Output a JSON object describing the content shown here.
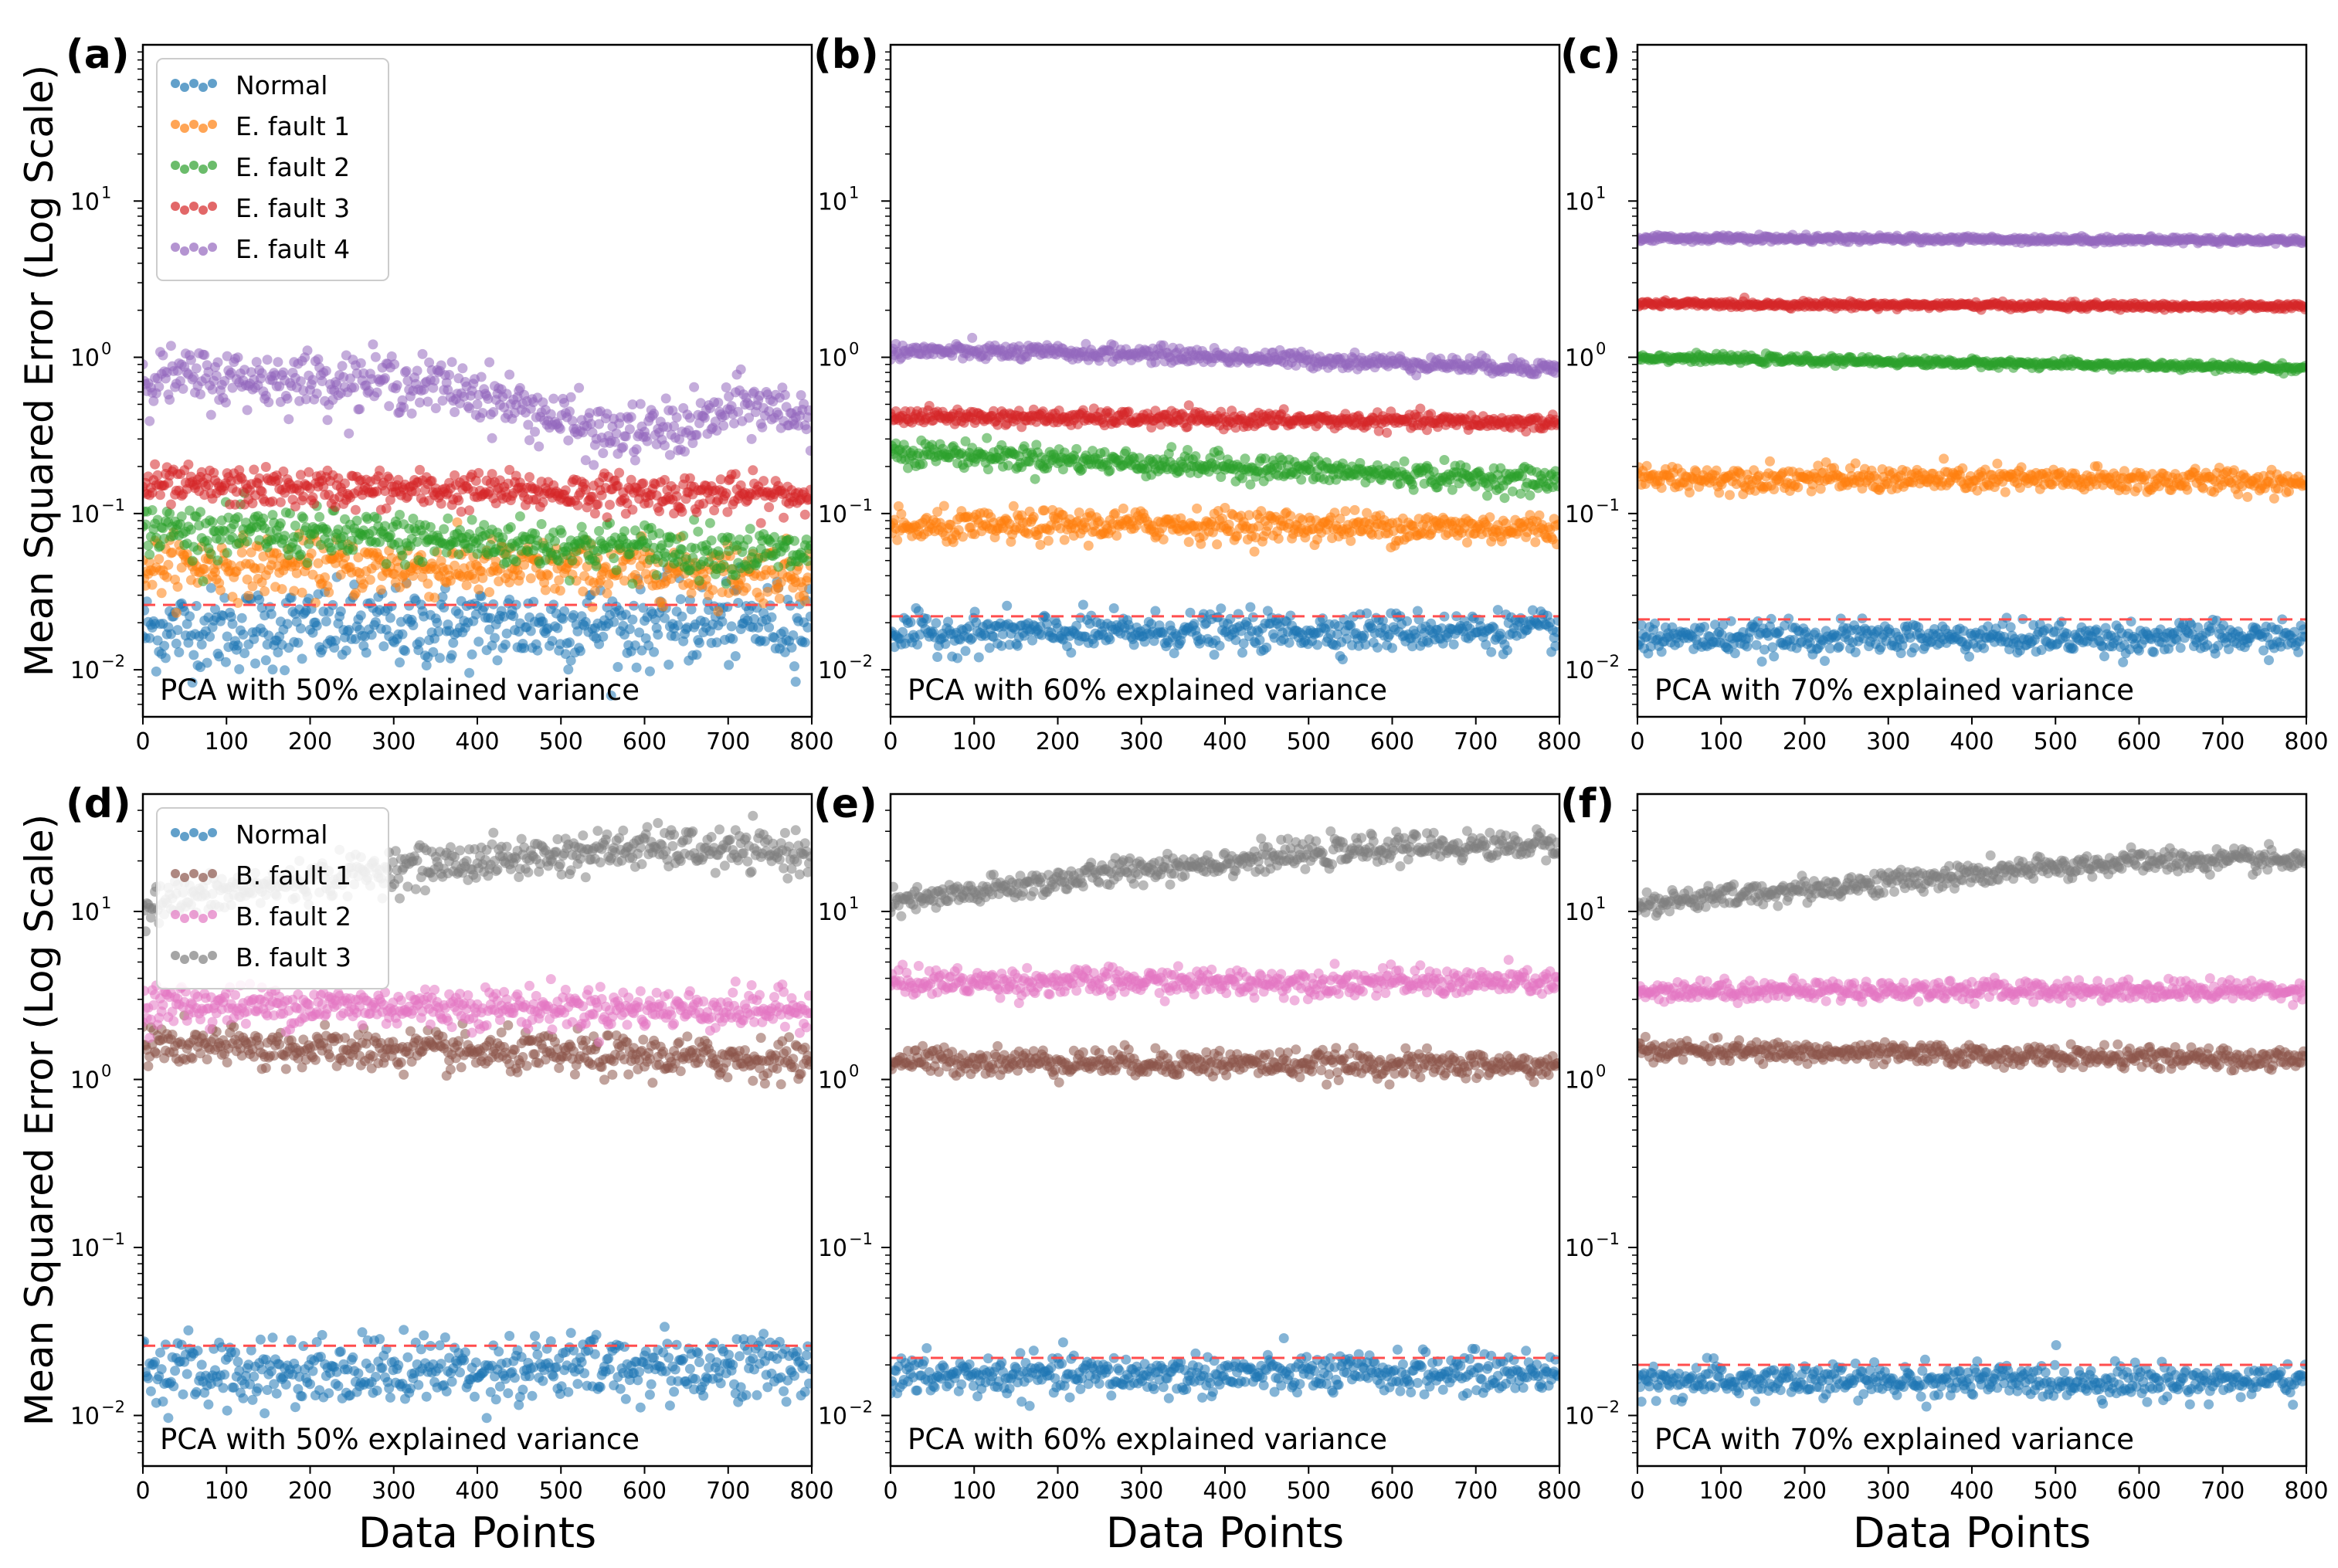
{
  "figure": {
    "ylabel": "Mean Squared Error (Log Scale)",
    "xlabel": "Data Points"
  },
  "chart_data": [
    {
      "type": "scatter",
      "panel": "(a)",
      "annotation": "PCA with 50% explained variance",
      "xlabel": "",
      "ylabel": "Mean Squared Error (Log Scale)",
      "xlim": [
        0,
        800
      ],
      "ylim": [
        0.005,
        100
      ],
      "yscale": "log",
      "xticks": [
        0,
        100,
        200,
        300,
        400,
        500,
        600,
        700,
        800
      ],
      "yticks": [
        {
          "value": 0.01,
          "label": "10",
          "exp": "−2"
        },
        {
          "value": 0.1,
          "label": "10",
          "exp": "−1"
        },
        {
          "value": 1,
          "label": "10",
          "exp": "0"
        },
        {
          "value": 10,
          "label": "10",
          "exp": "1"
        }
      ],
      "threshold": 0.026,
      "legend": "top-left",
      "series": [
        {
          "name": "Normal",
          "color": "#1f77b4",
          "level": 0.018,
          "trend": [
            [
              0,
              0.018
            ],
            [
              800,
              0.02
            ]
          ],
          "spread": 0.13
        },
        {
          "name": "E. fault 1",
          "color": "#ff7f0e",
          "level": 0.047,
          "trend": [
            [
              0,
              0.047
            ],
            [
              800,
              0.042
            ]
          ],
          "spread": 0.09
        },
        {
          "name": "E. fault 2",
          "color": "#2ca02c",
          "level": 0.075,
          "trend": [
            [
              0,
              0.08
            ],
            [
              800,
              0.055
            ]
          ],
          "spread": 0.08
        },
        {
          "name": "E. fault 3",
          "color": "#d62728",
          "level": 0.14,
          "trend": [
            [
              0,
              0.15
            ],
            [
              800,
              0.13
            ]
          ],
          "spread": 0.06
        },
        {
          "name": "E. fault 4",
          "color": "#9467bd",
          "level": 0.7,
          "trend": [
            [
              0,
              0.75
            ],
            [
              300,
              0.7
            ],
            [
              400,
              0.6
            ],
            [
              550,
              0.32
            ],
            [
              650,
              0.35
            ],
            [
              720,
              0.5
            ],
            [
              800,
              0.42
            ]
          ],
          "spread": 0.09
        }
      ]
    },
    {
      "type": "scatter",
      "panel": "(b)",
      "annotation": "PCA with 60% explained variance",
      "xlabel": "",
      "ylabel": "",
      "xlim": [
        0,
        800
      ],
      "ylim": [
        0.005,
        100
      ],
      "yscale": "log",
      "xticks": [
        0,
        100,
        200,
        300,
        400,
        500,
        600,
        700,
        800
      ],
      "yticks": [
        {
          "value": 0.01,
          "label": "10",
          "exp": "−2"
        },
        {
          "value": 0.1,
          "label": "10",
          "exp": "−1"
        },
        {
          "value": 1,
          "label": "10",
          "exp": "0"
        },
        {
          "value": 10,
          "label": "10",
          "exp": "1"
        }
      ],
      "threshold": 0.022,
      "legend": "",
      "series": [
        {
          "name": "Normal",
          "color": "#1f77b4",
          "level": 0.017,
          "trend": [
            [
              0,
              0.017
            ],
            [
              800,
              0.018
            ]
          ],
          "spread": 0.06
        },
        {
          "name": "E. fault 1",
          "color": "#ff7f0e",
          "level": 0.08,
          "trend": [
            [
              0,
              0.08
            ],
            [
              300,
              0.085
            ],
            [
              800,
              0.08
            ]
          ],
          "spread": 0.05
        },
        {
          "name": "E. fault 2",
          "color": "#2ca02c",
          "level": 0.2,
          "trend": [
            [
              0,
              0.25
            ],
            [
              800,
              0.16
            ]
          ],
          "spread": 0.04
        },
        {
          "name": "E. fault 3",
          "color": "#d62728",
          "level": 0.4,
          "trend": [
            [
              0,
              0.42
            ],
            [
              800,
              0.38
            ]
          ],
          "spread": 0.025
        },
        {
          "name": "E. fault 4",
          "color": "#9467bd",
          "level": 1.0,
          "trend": [
            [
              0,
              1.1
            ],
            [
              300,
              1.05
            ],
            [
              800,
              0.85
            ]
          ],
          "spread": 0.025
        }
      ]
    },
    {
      "type": "scatter",
      "panel": "(c)",
      "annotation": "PCA with 70% explained variance",
      "xlabel": "",
      "ylabel": "",
      "xlim": [
        0,
        800
      ],
      "ylim": [
        0.005,
        100
      ],
      "yscale": "log",
      "xticks": [
        0,
        100,
        200,
        300,
        400,
        500,
        600,
        700,
        800
      ],
      "yticks": [
        {
          "value": 0.01,
          "label": "10",
          "exp": "−2"
        },
        {
          "value": 0.1,
          "label": "10",
          "exp": "−1"
        },
        {
          "value": 1,
          "label": "10",
          "exp": "0"
        },
        {
          "value": 10,
          "label": "10",
          "exp": "1"
        }
      ],
      "threshold": 0.021,
      "legend": "",
      "series": [
        {
          "name": "Normal",
          "color": "#1f77b4",
          "level": 0.016,
          "trend": [
            [
              0,
              0.016
            ],
            [
              800,
              0.016
            ]
          ],
          "spread": 0.05
        },
        {
          "name": "E. fault 1",
          "color": "#ff7f0e",
          "level": 0.17,
          "trend": [
            [
              0,
              0.17
            ],
            [
              800,
              0.16
            ]
          ],
          "spread": 0.04
        },
        {
          "name": "E. fault 2",
          "color": "#2ca02c",
          "level": 0.95,
          "trend": [
            [
              0,
              1.0
            ],
            [
              800,
              0.85
            ]
          ],
          "spread": 0.012
        },
        {
          "name": "E. fault 3",
          "color": "#d62728",
          "level": 2.2,
          "trend": [
            [
              0,
              2.2
            ],
            [
              800,
              2.1
            ]
          ],
          "spread": 0.01
        },
        {
          "name": "E. fault 4",
          "color": "#9467bd",
          "level": 5.7,
          "trend": [
            [
              0,
              5.8
            ],
            [
              800,
              5.6
            ]
          ],
          "spread": 0.01
        }
      ]
    },
    {
      "type": "scatter",
      "panel": "(d)",
      "annotation": "PCA with 50% explained variance",
      "xlabel": "Data Points",
      "ylabel": "Mean Squared Error (Log Scale)",
      "xlim": [
        0,
        800
      ],
      "ylim": [
        0.005,
        50
      ],
      "yscale": "log",
      "xticks": [
        0,
        100,
        200,
        300,
        400,
        500,
        600,
        700,
        800
      ],
      "yticks": [
        {
          "value": 0.01,
          "label": "10",
          "exp": "−2"
        },
        {
          "value": 0.1,
          "label": "10",
          "exp": "−1"
        },
        {
          "value": 1,
          "label": "10",
          "exp": "0"
        },
        {
          "value": 10,
          "label": "10",
          "exp": "1"
        }
      ],
      "threshold": 0.026,
      "legend": "top-left",
      "series": [
        {
          "name": "Normal",
          "color": "#1f77b4",
          "level": 0.018,
          "trend": [
            [
              0,
              0.018
            ],
            [
              800,
              0.02
            ]
          ],
          "spread": 0.1
        },
        {
          "name": "B. fault 1",
          "color": "#8c564b",
          "level": 1.5,
          "trend": [
            [
              0,
              1.6
            ],
            [
              800,
              1.3
            ]
          ],
          "spread": 0.06
        },
        {
          "name": "B. fault 2",
          "color": "#e377c2",
          "level": 2.7,
          "trend": [
            [
              0,
              2.8
            ],
            [
              800,
              2.6
            ]
          ],
          "spread": 0.06
        },
        {
          "name": "B. fault 3",
          "color": "#7f7f7f",
          "level": 18,
          "trend": [
            [
              0,
              11
            ],
            [
              300,
              18
            ],
            [
              600,
              24
            ],
            [
              800,
              22
            ]
          ],
          "spread": 0.06
        }
      ]
    },
    {
      "type": "scatter",
      "panel": "(e)",
      "annotation": "PCA with 60% explained variance",
      "xlabel": "Data Points",
      "ylabel": "",
      "xlim": [
        0,
        800
      ],
      "ylim": [
        0.005,
        50
      ],
      "yscale": "log",
      "xticks": [
        0,
        100,
        200,
        300,
        400,
        500,
        600,
        700,
        800
      ],
      "yticks": [
        {
          "value": 0.01,
          "label": "10",
          "exp": "−2"
        },
        {
          "value": 0.1,
          "label": "10",
          "exp": "−1"
        },
        {
          "value": 1,
          "label": "10",
          "exp": "0"
        },
        {
          "value": 10,
          "label": "10",
          "exp": "1"
        }
      ],
      "threshold": 0.022,
      "legend": "",
      "series": [
        {
          "name": "Normal",
          "color": "#1f77b4",
          "level": 0.017,
          "trend": [
            [
              0,
              0.017
            ],
            [
              800,
              0.018
            ]
          ],
          "spread": 0.06
        },
        {
          "name": "B. fault 1",
          "color": "#8c564b",
          "level": 1.3,
          "trend": [
            [
              0,
              1.3
            ],
            [
              800,
              1.2
            ]
          ],
          "spread": 0.04
        },
        {
          "name": "B. fault 2",
          "color": "#e377c2",
          "level": 3.6,
          "trend": [
            [
              0,
              3.8
            ],
            [
              800,
              3.8
            ]
          ],
          "spread": 0.04
        },
        {
          "name": "B. fault 3",
          "color": "#7f7f7f",
          "level": 18,
          "trend": [
            [
              0,
              11
            ],
            [
              300,
              18
            ],
            [
              600,
              24
            ],
            [
              800,
              25
            ]
          ],
          "spread": 0.04
        }
      ]
    },
    {
      "type": "scatter",
      "panel": "(f)",
      "annotation": "PCA with 70% explained variance",
      "xlabel": "Data Points",
      "ylabel": "",
      "xlim": [
        0,
        800
      ],
      "ylim": [
        0.005,
        50
      ],
      "yscale": "log",
      "xticks": [
        0,
        100,
        200,
        300,
        400,
        500,
        600,
        700,
        800
      ],
      "yticks": [
        {
          "value": 0.01,
          "label": "10",
          "exp": "−2"
        },
        {
          "value": 0.1,
          "label": "10",
          "exp": "−1"
        },
        {
          "value": 1,
          "label": "10",
          "exp": "0"
        },
        {
          "value": 10,
          "label": "10",
          "exp": "1"
        }
      ],
      "threshold": 0.02,
      "legend": "",
      "series": [
        {
          "name": "Normal",
          "color": "#1f77b4",
          "level": 0.016,
          "trend": [
            [
              0,
              0.016
            ],
            [
              800,
              0.016
            ]
          ],
          "spread": 0.05
        },
        {
          "name": "B. fault 1",
          "color": "#8c564b",
          "level": 1.45,
          "trend": [
            [
              0,
              1.5
            ],
            [
              800,
              1.3
            ]
          ],
          "spread": 0.03
        },
        {
          "name": "B. fault 2",
          "color": "#e377c2",
          "level": 3.3,
          "trend": [
            [
              0,
              3.4
            ],
            [
              800,
              3.4
            ]
          ],
          "spread": 0.03
        },
        {
          "name": "B. fault 3",
          "color": "#7f7f7f",
          "level": 16,
          "trend": [
            [
              0,
              11
            ],
            [
              300,
              15
            ],
            [
              600,
              20
            ],
            [
              800,
              20
            ]
          ],
          "spread": 0.035
        }
      ]
    }
  ]
}
